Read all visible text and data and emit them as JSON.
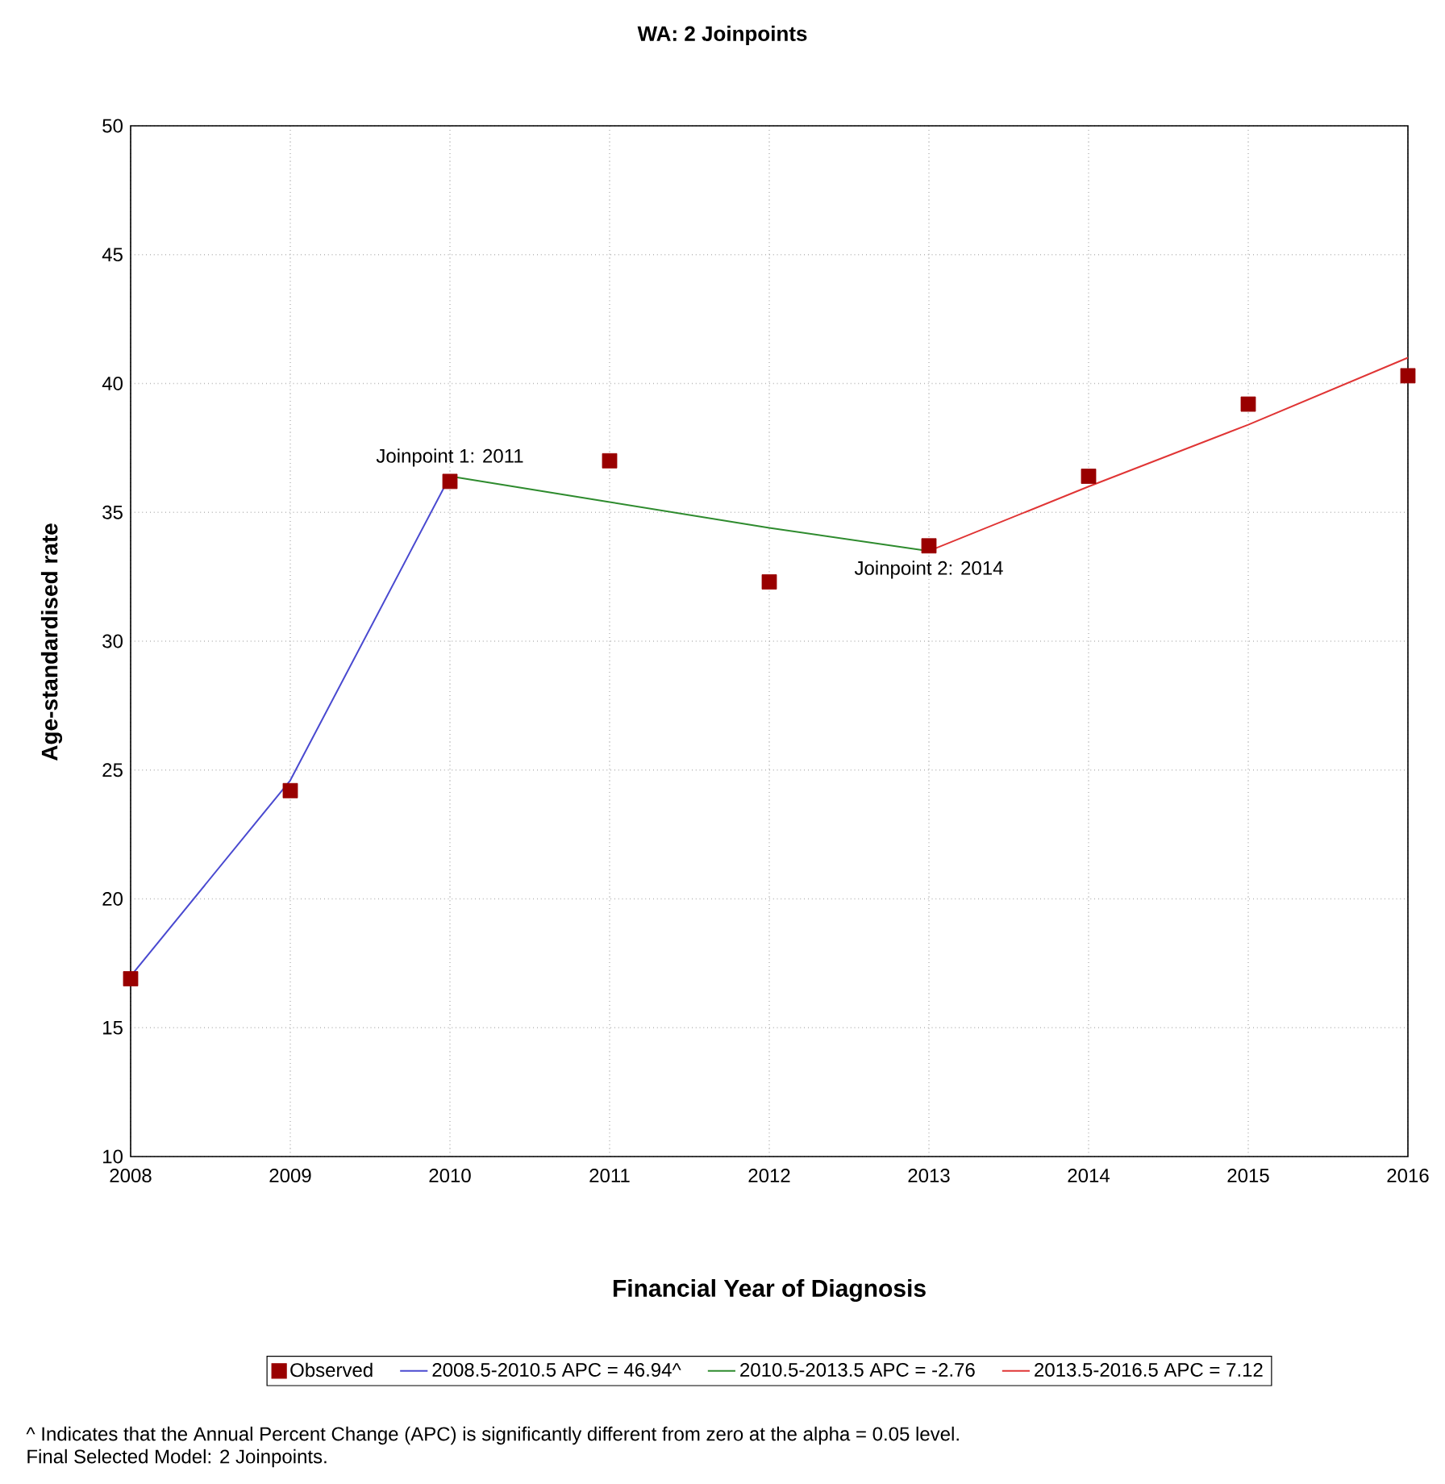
{
  "chart_data": {
    "type": "line",
    "title": "WA: 2 Joinpoints",
    "xlabel": "Financial Year of Diagnosis",
    "ylabel": "Age-standardised rate",
    "xlim": [
      2008,
      2016
    ],
    "xticks": [
      2008,
      2009,
      2010,
      2011,
      2012,
      2013,
      2014,
      2015,
      2016
    ],
    "ylim": [
      10,
      50
    ],
    "yticks": [
      10,
      15,
      20,
      25,
      30,
      35,
      40,
      45,
      50
    ],
    "grid": true,
    "legend": "bottom",
    "line_style": "solid",
    "marker": "none",
    "series": [
      {
        "name": "Observed",
        "type": "scatter",
        "marker": "square",
        "color": "#990000",
        "x": [
          2008,
          2009,
          2010,
          2011,
          2012,
          2013,
          2014,
          2015,
          2016
        ],
        "values": [
          16.9,
          24.2,
          36.2,
          37.0,
          32.3,
          33.7,
          36.4,
          39.2,
          40.3
        ]
      },
      {
        "name": "2008.5-2010.5 APC  = 46.94^",
        "color": "#4a4ad0",
        "x": [
          2008,
          2009,
          2010
        ],
        "values": [
          17.0,
          24.6,
          36.4
        ]
      },
      {
        "name": "2010.5-2013.5 APC  = -2.76",
        "color": "#2e8b2e",
        "x": [
          2010,
          2011,
          2012,
          2013
        ],
        "values": [
          36.4,
          35.4,
          34.4,
          33.5
        ]
      },
      {
        "name": "2013.5-2016.5 APC  =  7.12",
        "color": "#e03535",
        "x": [
          2013,
          2014,
          2015,
          2016
        ],
        "values": [
          33.5,
          36.0,
          38.4,
          41.0
        ]
      }
    ],
    "annotations": [
      {
        "text": "Joinpoint 1:  2011",
        "x": 2010,
        "y": 36.2
      },
      {
        "text": "Joinpoint 2:  2014",
        "x": 2013,
        "y": 33.7
      },
      "^ Indicates that the Annual Percent Change (APC) is significantly different from zero at the alpha = 0.05 level.",
      "Final Selected Model: 2 Joinpoints."
    ]
  }
}
